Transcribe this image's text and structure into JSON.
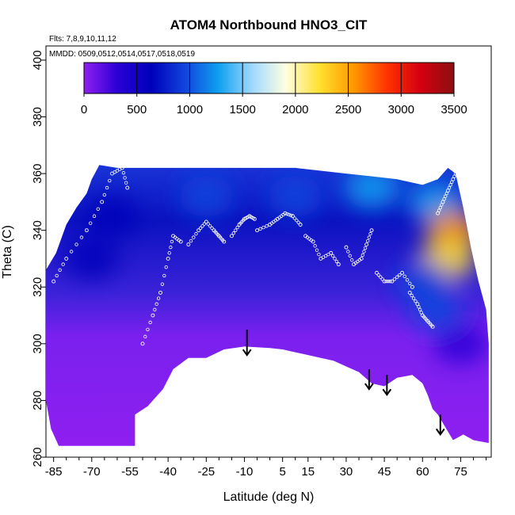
{
  "chart_data": {
    "type": "heatmap",
    "title": "ATOM4 Northbound HNO3_CIT",
    "flights_note": "Flts: 7,8,9,10,11,12",
    "dates_note": "MMDD: 0509,0512,0514,0517,0518,0519",
    "xlabel": "Latitude (deg N)",
    "ylabel": "Theta (C)",
    "xlim": [
      -88,
      87
    ],
    "ylim": [
      260,
      405
    ],
    "x_ticks": [
      -85,
      -70,
      -55,
      -40,
      -25,
      -10,
      5,
      15,
      30,
      45,
      60,
      75
    ],
    "y_ticks": [
      260,
      280,
      300,
      320,
      340,
      360,
      380,
      400
    ],
    "colorbar": {
      "min": 0,
      "max": 3500,
      "ticks": [
        0,
        500,
        1000,
        1500,
        2000,
        2500,
        3000,
        3500
      ],
      "colors": [
        "#8f1ff0",
        "#2a00d6",
        "#0000bb",
        "#1144dd",
        "#0ea0f0",
        "#9fd9ff",
        "#ffffe0",
        "#ffe030",
        "#ff9a00",
        "#ff3300",
        "#d40010",
        "#8b1010"
      ]
    },
    "envelope_top": [
      [
        -88,
        326
      ],
      [
        -84,
        332
      ],
      [
        -80,
        342
      ],
      [
        -76,
        348
      ],
      [
        -72,
        353
      ],
      [
        -70,
        358
      ],
      [
        -67,
        363
      ],
      [
        -60,
        362
      ],
      [
        -50,
        362
      ],
      [
        -40,
        362
      ],
      [
        -30,
        362
      ],
      [
        -20,
        362
      ],
      [
        -10,
        362
      ],
      [
        0,
        362
      ],
      [
        10,
        362
      ],
      [
        20,
        361
      ],
      [
        30,
        360
      ],
      [
        40,
        359
      ],
      [
        50,
        358
      ],
      [
        60,
        356
      ],
      [
        66,
        358
      ],
      [
        70,
        362
      ],
      [
        73,
        360
      ],
      [
        76,
        348
      ],
      [
        79,
        334
      ],
      [
        82,
        322
      ],
      [
        85,
        312
      ],
      [
        86,
        300
      ]
    ],
    "envelope_bottom": [
      [
        86,
        265
      ],
      [
        80,
        266
      ],
      [
        76,
        268
      ],
      [
        72,
        266
      ],
      [
        68,
        272
      ],
      [
        66,
        275
      ],
      [
        64,
        277
      ],
      [
        62,
        282
      ],
      [
        60,
        286
      ],
      [
        56,
        289
      ],
      [
        50,
        288
      ],
      [
        45,
        285
      ],
      [
        40,
        286
      ],
      [
        35,
        290
      ],
      [
        30,
        292
      ],
      [
        25,
        294
      ],
      [
        20,
        295
      ],
      [
        10,
        297
      ],
      [
        5,
        298
      ],
      [
        0,
        298.5
      ],
      [
        -10,
        299
      ],
      [
        -18,
        298
      ],
      [
        -25,
        295
      ],
      [
        -32,
        295
      ],
      [
        -38,
        291
      ],
      [
        -42,
        284
      ],
      [
        -48,
        278
      ],
      [
        -53,
        275
      ],
      [
        -53,
        264
      ],
      [
        -83,
        264
      ],
      [
        -86,
        270
      ],
      [
        -88,
        280
      ]
    ],
    "field_features": [
      {
        "lat": -62,
        "theta": 345,
        "value": 700
      },
      {
        "lat": -70,
        "theta": 330,
        "value": 650
      },
      {
        "lat": -25,
        "theta": 352,
        "value": 900
      },
      {
        "lat": 10,
        "theta": 352,
        "value": 950
      },
      {
        "lat": 40,
        "theta": 355,
        "value": 1300
      },
      {
        "lat": 65,
        "theta": 350,
        "value": 1400
      },
      {
        "lat": 72,
        "theta": 340,
        "value": 2600
      },
      {
        "lat": 70,
        "theta": 330,
        "value": 2300
      },
      {
        "lat": 60,
        "theta": 322,
        "value": 900
      },
      {
        "lat": 65,
        "theta": 312,
        "value": 1100
      },
      {
        "lat": 75,
        "theta": 300,
        "value": 400
      }
    ],
    "flight_tracks": [
      {
        "lat": [
          -85,
          -80,
          -72,
          -66,
          -62,
          -58,
          -56
        ],
        "theta": [
          322,
          330,
          340,
          350,
          360,
          362,
          355
        ]
      },
      {
        "lat": [
          -50,
          -46,
          -43,
          -40,
          -38,
          -35
        ],
        "theta": [
          300,
          310,
          318,
          330,
          338,
          336
        ]
      },
      {
        "lat": [
          -32,
          -28,
          -25,
          -22,
          -20,
          -18
        ],
        "theta": [
          335,
          340,
          343,
          340,
          338,
          336
        ]
      },
      {
        "lat": [
          -15,
          -12,
          -10,
          -8,
          -6
        ],
        "theta": [
          338,
          342,
          344,
          345,
          344
        ]
      },
      {
        "lat": [
          -5,
          0,
          3,
          6,
          9,
          12
        ],
        "theta": [
          340,
          342,
          344,
          346,
          345,
          342
        ]
      },
      {
        "lat": [
          14,
          17,
          20,
          24,
          27
        ],
        "theta": [
          338,
          336,
          330,
          332,
          328
        ]
      },
      {
        "lat": [
          30,
          33,
          36,
          38,
          40
        ],
        "theta": [
          334,
          328,
          330,
          335,
          340
        ]
      },
      {
        "lat": [
          42,
          45,
          48,
          52,
          56
        ],
        "theta": [
          325,
          322,
          322,
          325,
          320
        ]
      },
      {
        "lat": [
          55,
          58,
          60,
          62,
          64
        ],
        "theta": [
          318,
          314,
          310,
          308,
          306
        ]
      },
      {
        "lat": [
          66,
          68,
          70,
          72,
          74
        ],
        "theta": [
          346,
          350,
          354,
          358,
          362
        ]
      }
    ],
    "arrows": [
      {
        "lat": -9,
        "theta_top": 305,
        "theta_tip": 296
      },
      {
        "lat": 39,
        "theta_top": 291,
        "theta_tip": 284
      },
      {
        "lat": 46,
        "theta_top": 289,
        "theta_tip": 282
      },
      {
        "lat": 67,
        "theta_top": 275,
        "theta_tip": 268
      }
    ]
  }
}
